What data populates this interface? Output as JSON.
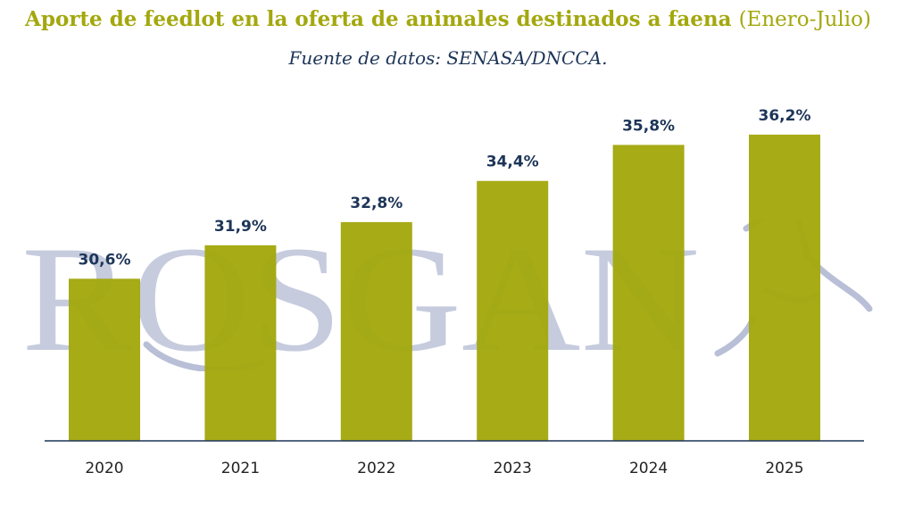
{
  "header": {
    "title": "Aporte de feedlot en la oferta de animales destinados a faena",
    "period": "(Enero-Julio)",
    "subtitle": "Fuente de datos: SENASA/DNCCA."
  },
  "watermark": {
    "text": "ROSGAN"
  },
  "colors": {
    "bar": "#a3a80e",
    "title": "#a3a80e",
    "value_label": "#1d3558",
    "axis": "#1d3558",
    "watermark": "#b8bfd6"
  },
  "chart_data": {
    "type": "bar",
    "title": "Aporte de feedlot en la oferta de animales destinados a faena (Enero-Julio)",
    "subtitle": "Fuente de datos: SENASA/DNCCA.",
    "xlabel": "",
    "ylabel": "",
    "categories": [
      "2020",
      "2021",
      "2022",
      "2023",
      "2024",
      "2025"
    ],
    "values": [
      30.6,
      31.9,
      32.8,
      34.4,
      35.8,
      36.2
    ],
    "value_labels": [
      "30,6%",
      "31,9%",
      "32,8%",
      "34,4%",
      "35,8%",
      "36,2%"
    ],
    "ylim": [
      24.3,
      37.2
    ],
    "grid": false,
    "legend": "none"
  }
}
